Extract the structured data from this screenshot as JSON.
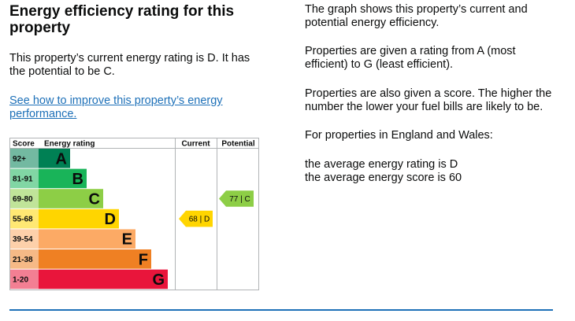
{
  "section": {
    "title": "Energy efficiency rating for this property",
    "current_text": "This property’s current energy rating is D. It has the potential to be C.",
    "improve_link": "See how to improve this property’s energy performance."
  },
  "side": {
    "p1": "The graph shows this property’s current and potential energy efficiency.",
    "p2": "Properties are given a rating from A (most efficient) to G (least efficient).",
    "p3": "Properties are also given a score. The higher the number the lower your fuel bills are likely to be.",
    "p4": "For properties in England and Wales:",
    "p5a": "the average energy rating is D",
    "p5b": "the average energy score is 60"
  },
  "chart_data": {
    "type": "table",
    "headers": {
      "score": "Score",
      "rating": "Energy rating",
      "current": "Current",
      "potential": "Potential"
    },
    "bands": [
      {
        "range": "92+",
        "letter": "A",
        "color": "#008054"
      },
      {
        "range": "81-91",
        "letter": "B",
        "color": "#19b459"
      },
      {
        "range": "69-80",
        "letter": "C",
        "color": "#8dce46"
      },
      {
        "range": "55-68",
        "letter": "D",
        "color": "#ffd500"
      },
      {
        "range": "39-54",
        "letter": "E",
        "color": "#fcaa65"
      },
      {
        "range": "21-38",
        "letter": "F",
        "color": "#ef8023"
      },
      {
        "range": "1-20",
        "letter": "G",
        "color": "#e9153b"
      }
    ],
    "current": {
      "score": 68,
      "band": "D",
      "label": "68 |  D",
      "color": "#ffd500"
    },
    "potential": {
      "score": 77,
      "band": "C",
      "label": "77 |  C",
      "color": "#8dce46"
    },
    "accent_link_color": "#1d70b8"
  }
}
